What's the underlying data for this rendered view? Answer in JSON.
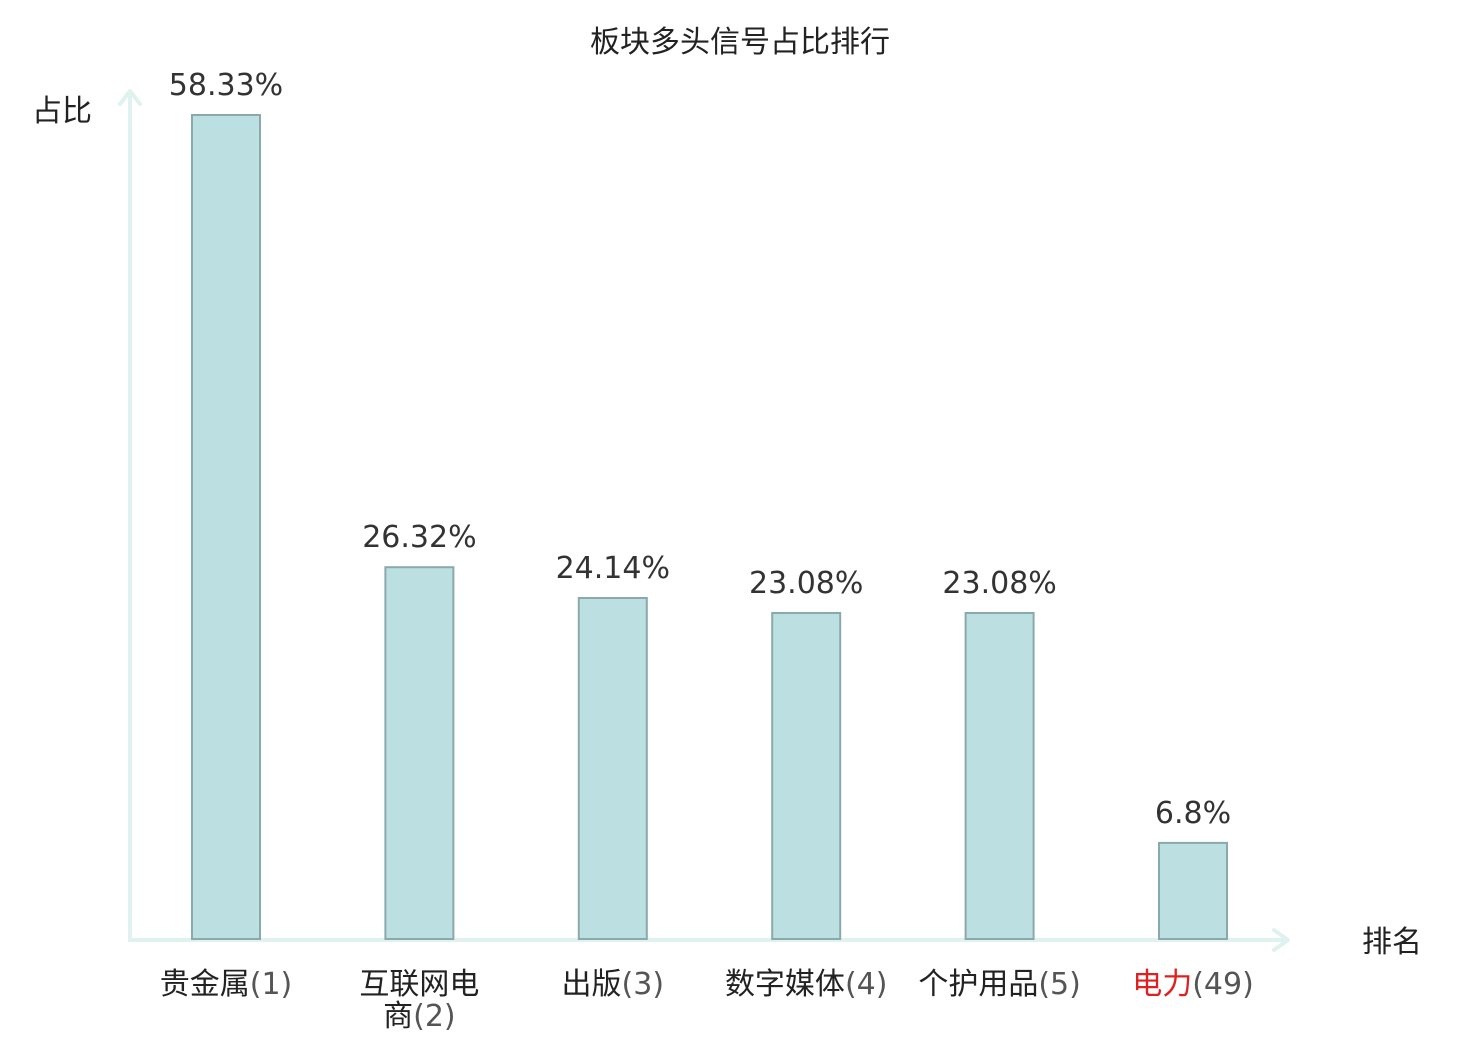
{
  "chart_data": {
    "type": "bar",
    "title": "板块多头信号占比排行",
    "xlabel": "排名",
    "ylabel": "占比",
    "categories": [
      "贵金属",
      "互联网电商",
      "出版",
      "数字媒体",
      "个护用品",
      "电力"
    ],
    "ranks": [
      "(1)",
      "(2)",
      "(3)",
      "(4)",
      "(5)",
      "(49)"
    ],
    "values": [
      58.33,
      26.32,
      24.14,
      23.08,
      23.08,
      6.8
    ],
    "value_labels": [
      "58.33%",
      "26.32%",
      "24.14%",
      "23.08%",
      "23.08%",
      "6.8%"
    ],
    "highlight_index": 5,
    "ylim": [
      0,
      58.33
    ],
    "grid": false,
    "legend": "none"
  },
  "colors": {
    "bar_fill": "#bce0e2",
    "bar_stroke": "#8aa9ab",
    "axis": "#e0f2ef",
    "text": "#222222",
    "value_text": "#333333",
    "highlight": "#e02020"
  }
}
